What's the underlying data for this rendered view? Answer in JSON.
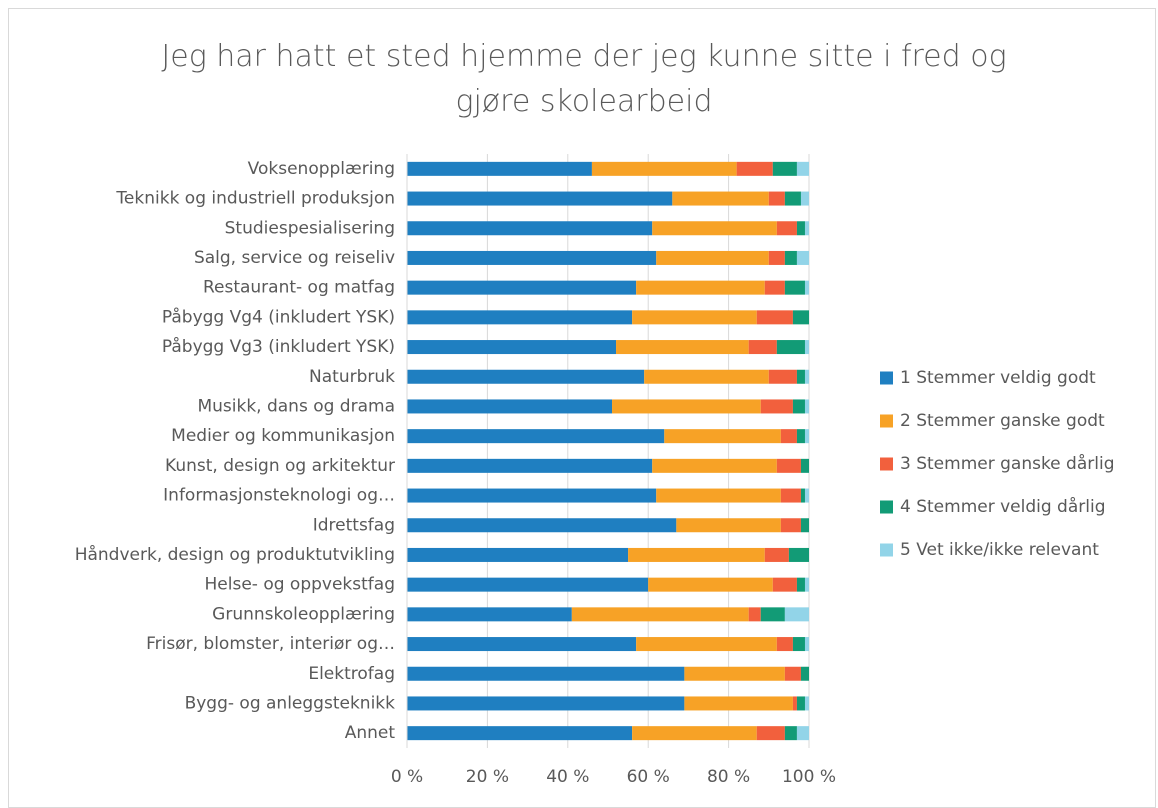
{
  "chart_data": {
    "type": "stacked_barh",
    "title": "Jeg har hatt et sted hjemme der jeg kunne sitte i fred og gjøre skolearbeid",
    "categories": [
      "Voksenopplæring",
      "Teknikk og industriell produksjon",
      "Studiespesialisering",
      "Salg, service og reiseliv",
      "Restaurant- og matfag",
      "Påbygg Vg4 (inkludert YSK)",
      "Påbygg Vg3 (inkludert YSK)",
      "Naturbruk",
      "Musikk, dans og drama",
      "Medier og kommunikasjon",
      "Kunst, design og arkitektur",
      "Informasjonsteknologi og…",
      "Idrettsfag",
      "Håndverk, design og produktutvikling",
      "Helse- og oppvekstfag",
      "Grunnskoleopplæring",
      "Frisør, blomster, interiør og…",
      "Elektrofag",
      "Bygg- og anleggsteknikk",
      "Annet"
    ],
    "series": [
      {
        "name": "1 Stemmer veldig godt",
        "color": "#1f7fc1",
        "values": [
          46,
          66,
          61,
          62,
          57,
          56,
          52,
          59,
          51,
          64,
          61,
          62,
          67,
          55,
          60,
          41,
          57,
          69,
          69,
          56
        ]
      },
      {
        "name": "2 Stemmer ganske godt",
        "color": "#f7a226",
        "values": [
          36,
          24,
          31,
          28,
          32,
          31,
          33,
          31,
          37,
          29,
          31,
          31,
          26,
          34,
          31,
          44,
          35,
          25,
          27,
          31
        ]
      },
      {
        "name": "3 Stemmer ganske dårlig",
        "color": "#f2603d",
        "values": [
          9,
          4,
          5,
          4,
          5,
          9,
          7,
          7,
          8,
          4,
          6,
          5,
          5,
          6,
          6,
          3,
          4,
          4,
          1,
          7
        ]
      },
      {
        "name": "4 Stemmer veldig dårlig",
        "color": "#129b76",
        "values": [
          6,
          4,
          2,
          3,
          5,
          4,
          7,
          2,
          3,
          2,
          2,
          1,
          2,
          5,
          2,
          6,
          3,
          2,
          2,
          3
        ]
      },
      {
        "name": "5 Vet ikke/ikke relevant",
        "color": "#92d4e8",
        "values": [
          3,
          2,
          1,
          3,
          1,
          0,
          1,
          1,
          1,
          1,
          0,
          1,
          0,
          0,
          1,
          6,
          1,
          0,
          1,
          3
        ]
      }
    ],
    "xlim": [
      0,
      100
    ],
    "xticks": [
      {
        "value": 0,
        "label": "0 %"
      },
      {
        "value": 20,
        "label": "20 %"
      },
      {
        "value": 40,
        "label": "40 %"
      },
      {
        "value": 60,
        "label": "60 %"
      },
      {
        "value": 80,
        "label": "80 %"
      },
      {
        "value": 100,
        "label": "100 %"
      }
    ],
    "grid": true,
    "legend": "right"
  }
}
